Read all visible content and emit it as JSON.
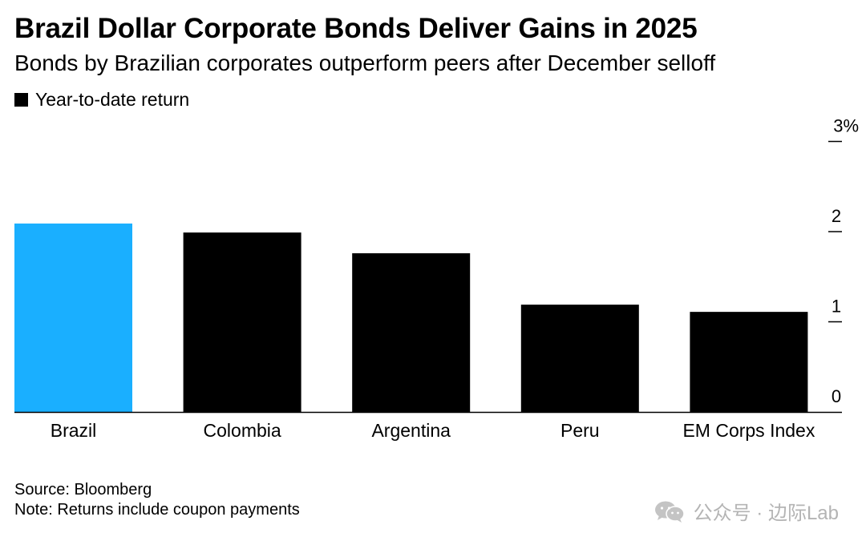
{
  "header": {
    "title": "Brazil Dollar Corporate Bonds Deliver Gains in 2025",
    "subtitle": "Bonds by Brazilian corporates outperform peers after December selloff"
  },
  "legend": {
    "label": "Year-to-date return",
    "color": "#000000"
  },
  "footer": {
    "source": "Source: Bloomberg",
    "note": "Note: Returns include coupon payments"
  },
  "watermark": {
    "text": "公众号 · 边际Lab",
    "icon": "wechat-icon"
  },
  "colors": {
    "highlight": "#1AAFFF",
    "bar": "#000000"
  },
  "chart_data": {
    "type": "bar",
    "title": "Brazil Dollar Corporate Bonds Deliver Gains in 2025",
    "subtitle": "Bonds by Brazilian corporates outperform peers after December selloff",
    "xlabel": "",
    "ylabel": "Year-to-date return",
    "categories": [
      "Brazil",
      "Colombia",
      "Argentina",
      "Peru",
      "EM Corps Index"
    ],
    "series": [
      {
        "name": "Year-to-date return",
        "values": [
          2.09,
          1.99,
          1.76,
          1.19,
          1.11
        ],
        "colors": [
          "#1AAFFF",
          "#000000",
          "#000000",
          "#000000",
          "#000000"
        ]
      }
    ],
    "ylim": [
      0,
      3
    ],
    "yticks": [
      0,
      1,
      2,
      3
    ],
    "ytick_labels": [
      "0",
      "1",
      "2",
      "3%"
    ],
    "y_axis_side": "right",
    "grid": false
  }
}
